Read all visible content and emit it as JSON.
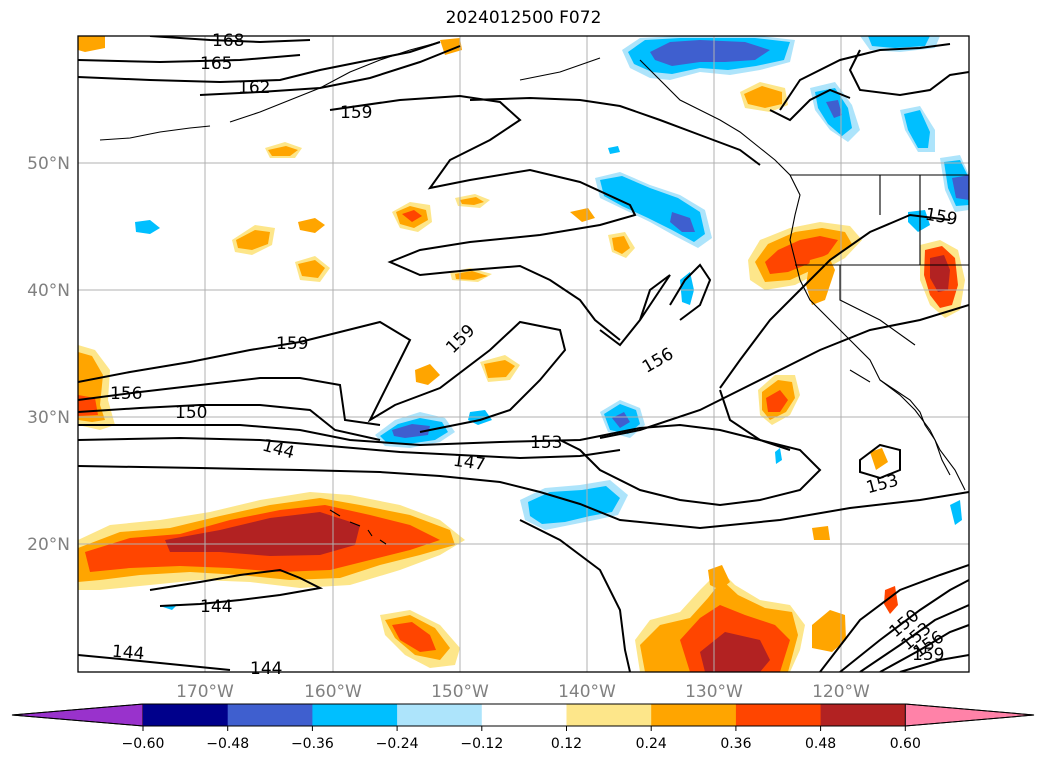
{
  "title": "2024012500 F072",
  "map": {
    "projection": "lat-lon",
    "lon_range": [
      -180,
      -110
    ],
    "lat_range": [
      10,
      60
    ],
    "graticule": {
      "lon_labels": [
        "170°W",
        "160°W",
        "150°W",
        "140°W",
        "130°W",
        "120°W"
      ],
      "lat_labels": [
        "50°N",
        "40°N",
        "30°N",
        "20°N"
      ],
      "label_color": "#808080"
    },
    "contour_labels": [
      "168",
      "165",
      "162",
      "159",
      "159",
      "159",
      "159",
      "156",
      "156",
      "150",
      "153",
      "153",
      "147",
      "144",
      "144",
      "144",
      "144",
      "150",
      "153",
      "156",
      "159"
    ]
  },
  "colorbar": {
    "ticks": [
      "−0.60",
      "−0.48",
      "−0.36",
      "−0.24",
      "−0.12",
      "0.12",
      "0.24",
      "0.36",
      "0.48",
      "0.60"
    ],
    "colors": [
      "#9932cc",
      "#00008b",
      "#3f5fcf",
      "#00bfff",
      "#ade4fb",
      "#ffffff",
      "#fde68a",
      "#ffa500",
      "#ff4500",
      "#b22222",
      "#ff82a8"
    ],
    "extend": "both"
  }
}
